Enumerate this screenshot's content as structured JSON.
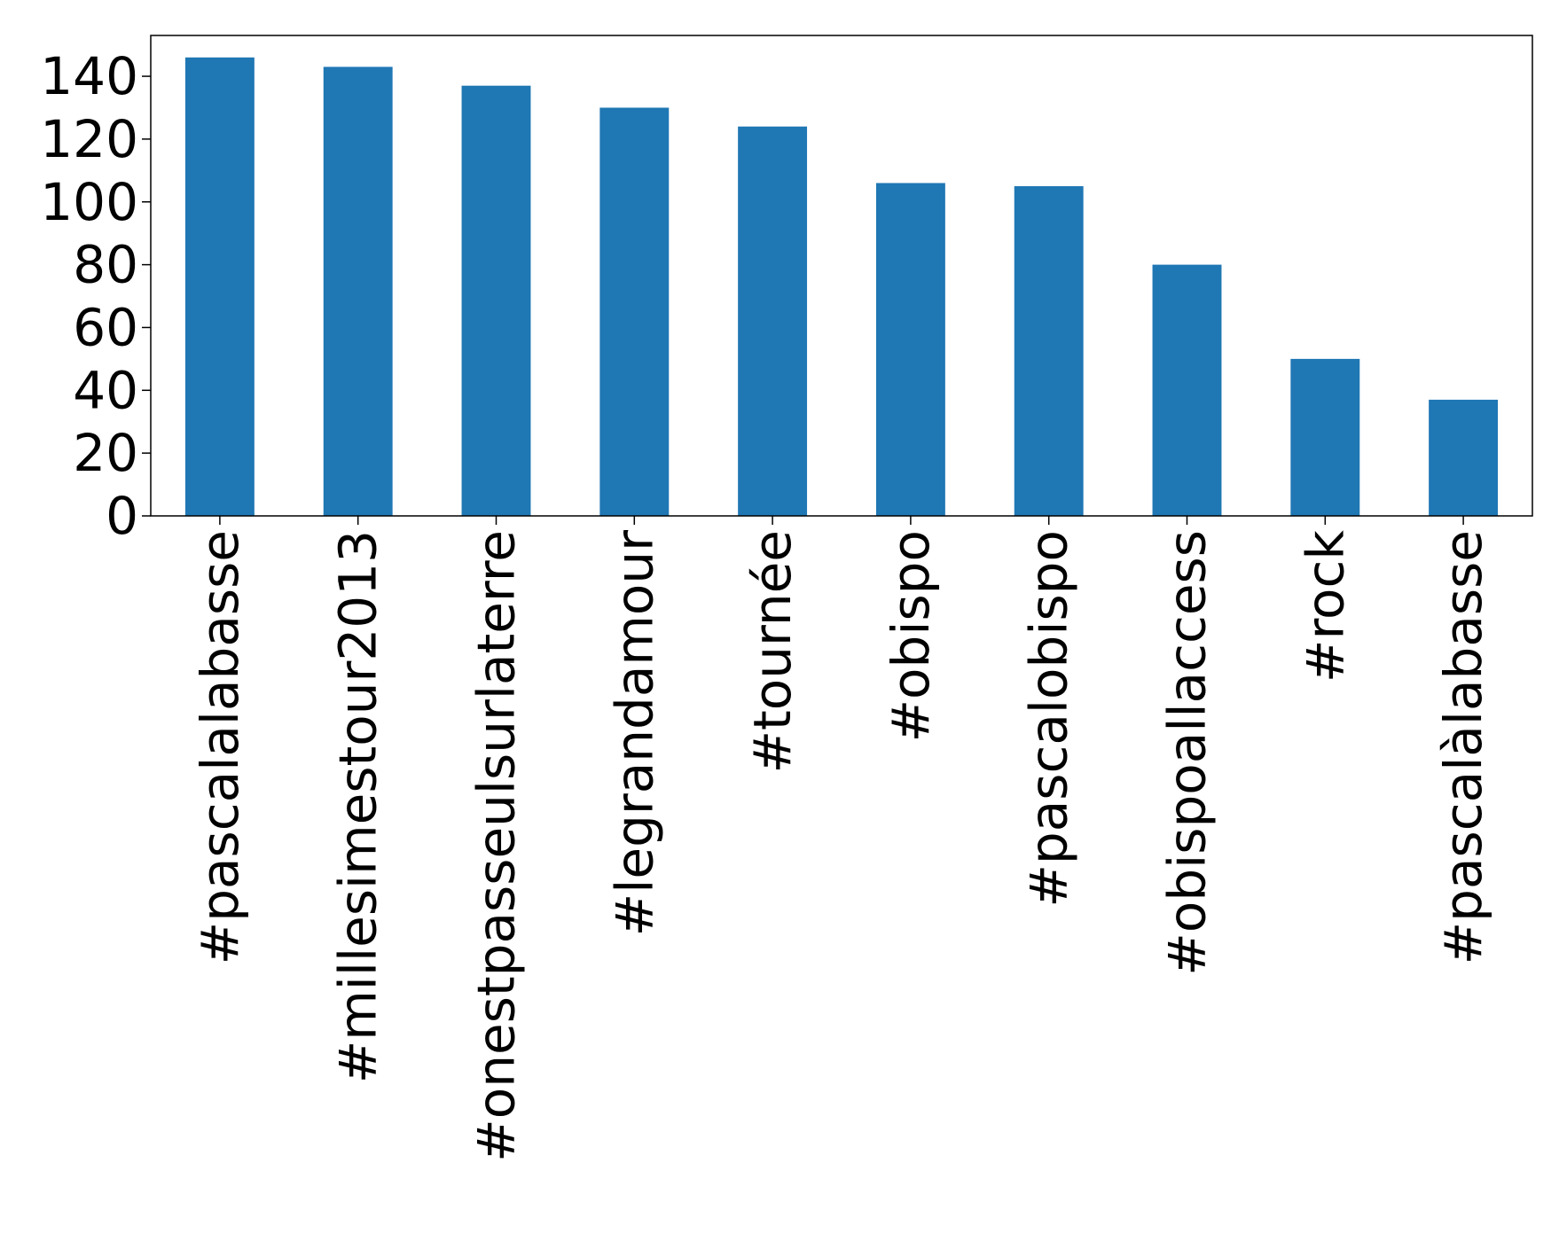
{
  "chart_data": {
    "type": "bar",
    "title": "",
    "xlabel": "",
    "ylabel": "",
    "categories": [
      "#pascalalabasse",
      "#millesimestour2013",
      "#onestpasseulsurlaterre",
      "#legrandamour",
      "#tournée",
      "#obispo",
      "#pascalobispo",
      "#obispoallaccess",
      "#rock",
      "#pascalàlabasse"
    ],
    "values": [
      146,
      143,
      137,
      130,
      124,
      106,
      105,
      80,
      50,
      37
    ],
    "ylim": [
      0,
      153
    ],
    "yticks": [
      0,
      20,
      40,
      60,
      80,
      100,
      120,
      140
    ],
    "ytick_labels": [
      "0",
      "20",
      "40",
      "60",
      "80",
      "100",
      "120",
      "140"
    ],
    "grid": false,
    "legend": "none",
    "bar_color": "#1f77b4",
    "axis_color": "#000000"
  }
}
